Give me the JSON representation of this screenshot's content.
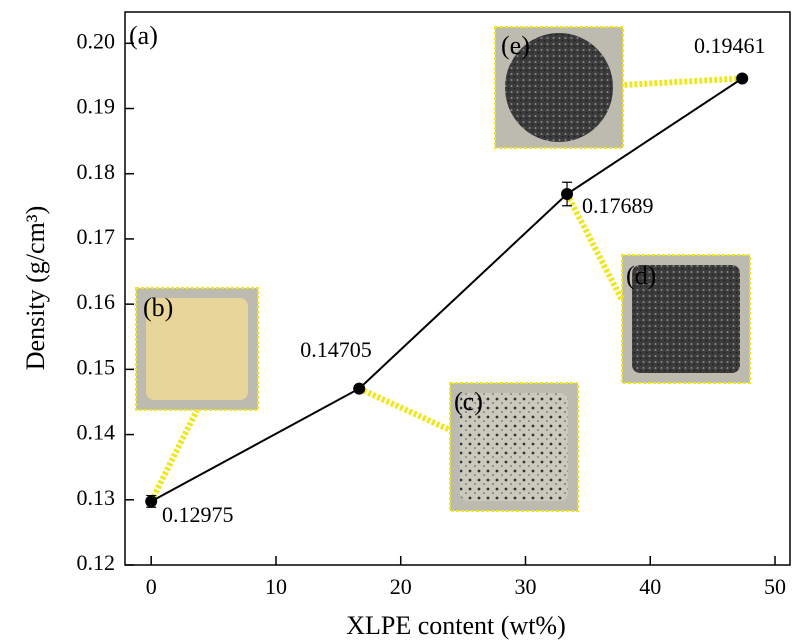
{
  "chart_data": {
    "type": "line",
    "xlabel": "XLPE content (wt%)",
    "ylabel": "Density (g/cm³)",
    "x": [
      0,
      16.67,
      33.33,
      47.37
    ],
    "series": [
      {
        "color": "#000000",
        "values": [
          0.12975,
          0.14705,
          0.17689,
          0.19461
        ],
        "errors": [
          0.0009,
          0.0004,
          0.0018,
          0.0004
        ]
      }
    ],
    "xlim": [
      -2.1,
      51.2
    ],
    "ylim": [
      0.12,
      0.2048
    ],
    "xticks": [
      0,
      10,
      20,
      30,
      40,
      50
    ],
    "yticks": [
      {
        "value": 0.12,
        "label": "0.12"
      },
      {
        "value": 0.13,
        "label": "0.13"
      },
      {
        "value": 0.14,
        "label": "0.14"
      },
      {
        "value": 0.15,
        "label": "0.15"
      },
      {
        "value": 0.16,
        "label": "0.16"
      },
      {
        "value": 0.17,
        "label": "0.17"
      },
      {
        "value": 0.18,
        "label": "0.18"
      },
      {
        "value": 0.19,
        "label": "0.19"
      },
      {
        "value": 0.2,
        "label": "0.20"
      }
    ],
    "annotations": [
      "(a)",
      "(b)",
      "(c)",
      "(d)",
      "(e)"
    ]
  }
}
